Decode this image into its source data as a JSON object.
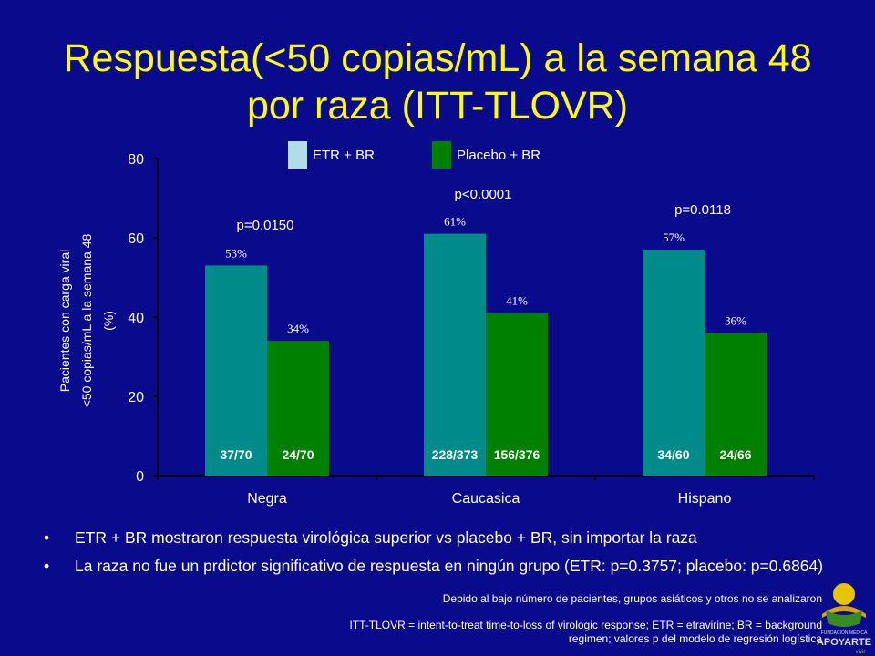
{
  "slide": {
    "title": "Respuesta(<50 copias/mL) a la semana 48 por raza (ITT-TLOVR)",
    "bullets": [
      "ETR + BR mostraron respuesta virológica superior vs placebo + BR, sin importar la raza",
      "La raza no fue un prdictor significativo de respuesta en ningún grupo (ETR: p=0.3757; placebo: p=0.6864)"
    ],
    "footnote_1": "Debido al bajo número de pacientes, grupos asiáticos y otros no se analizaron",
    "footnote_2": "ITT-TLOVR = intent-to-treat time-to-loss of virologic response; ETR = etravirine; BR = background regimen; valores p del modelo de regresión logística",
    "logo_text": "FUNDACION MEDICA APOYARTE vivir"
  },
  "chart_data": {
    "type": "bar",
    "categories": [
      "Negra",
      "Caucasica",
      "Hispano"
    ],
    "series": [
      {
        "name": "ETR + BR",
        "values": [
          53,
          61,
          57
        ],
        "value_labels": [
          "53%",
          "61%",
          "57%"
        ],
        "counts": [
          "37/70",
          "228/373",
          "34/60"
        ],
        "color": "#008b8b"
      },
      {
        "name": "Placebo + BR",
        "values": [
          34,
          41,
          36
        ],
        "value_labels": [
          "34%",
          "41%",
          "36%"
        ],
        "counts": [
          "24/70",
          "156/376",
          "24/66"
        ],
        "color": "#008000"
      }
    ],
    "p_values": [
      "p=0.0150",
      "p<0.0001",
      "p=0.0118"
    ],
    "ylabel": "Pacientes con carga viral <50 copias/mL a la semana 48 (%)",
    "ylabel_lines": [
      "Pacientes con carga viral",
      "<50 copias/mL a la semana 48",
      "(%)"
    ],
    "yticks": [
      0,
      20,
      40,
      60,
      80
    ],
    "ylim": [
      0,
      80
    ],
    "legend_position": "top",
    "legend_swatch_colors": [
      "#b0dde8",
      "#008000"
    ],
    "grid": false
  }
}
